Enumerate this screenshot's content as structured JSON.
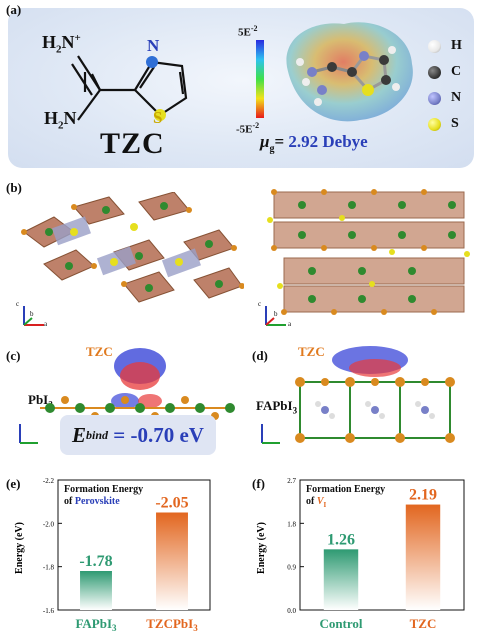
{
  "panel_a": {
    "label": "(a)",
    "molecule_name": "TZC",
    "atom_labels": {
      "h2n_top": "H",
      "h2n_top_n": "N",
      "h2n_sub": "2",
      "plus": "+",
      "h2n_bottom": "H",
      "h2n_bottom_sub": "2",
      "h2n_bottom_n": "N",
      "ring_n": "N",
      "ring_s": "S"
    },
    "scale_top_base": "5E",
    "scale_top_exp": "-2",
    "scale_bottom_base": "-5E",
    "scale_bottom_exp": "-2",
    "mu_symbol": "μ",
    "mu_sub": "g",
    "mu_eq": "= ",
    "mu_value": "2.92 Debye",
    "legend": [
      {
        "label": "H",
        "color": "#e8e8e8"
      },
      {
        "label": "C",
        "color": "#3a3a3a"
      },
      {
        "label": "N",
        "color": "#7880c8"
      },
      {
        "label": "S",
        "color": "#e6df1e"
      }
    ]
  },
  "panel_b": {
    "label": "(b)",
    "axes_left": {
      "c": "c",
      "b": "b",
      "a": "a"
    },
    "axes_right": {
      "c": "c",
      "b": "b",
      "a": "a"
    }
  },
  "panel_c": {
    "label": "(c)",
    "tzc": "TZC",
    "substrate": "PbI",
    "substrate_sub": "2",
    "ebind_symbol": "E",
    "ebind_sub": "bind",
    "ebind_value": "= -0.70 eV"
  },
  "panel_d": {
    "label": "(d)",
    "tzc": "TZC",
    "substrate": "FAPbI",
    "substrate_sub": "3"
  },
  "chart_data": [
    {
      "panel": "(e)",
      "type": "bar",
      "title_line1": "Formation Energy",
      "title_line2_prefix": "of ",
      "title_line2_highlight": "Perovskite",
      "ylabel": "Energy (eV)",
      "ylim": [
        -1.6,
        -2.2
      ],
      "yticks": [
        "-1.6",
        "-1.8",
        "-2.0",
        "-2.2"
      ],
      "categories": [
        "FAPbI3",
        "TZCPbI3"
      ],
      "category_parts": [
        {
          "base": "FAPbI",
          "sub": "3"
        },
        {
          "base": "TZCPbI",
          "sub": "3"
        }
      ],
      "values": [
        -1.78,
        -2.05
      ],
      "value_labels": [
        "-1.78",
        "-2.05"
      ],
      "colors": [
        "#2e9a72",
        "#e2661f"
      ]
    },
    {
      "panel": "(f)",
      "type": "bar",
      "title_line1": "Formation Energy",
      "title_line2_prefix": "of ",
      "title_line2_highlight": "V",
      "title_line2_sub": "I",
      "ylabel": "Energy (eV)",
      "ylim": [
        0.0,
        2.7
      ],
      "yticks": [
        "0.0",
        "0.9",
        "1.8",
        "2.7"
      ],
      "categories": [
        "Control",
        "TZC"
      ],
      "category_parts": [
        {
          "base": "Control",
          "sub": ""
        },
        {
          "base": "TZC",
          "sub": ""
        }
      ],
      "values": [
        1.26,
        2.19
      ],
      "value_labels": [
        "1.26",
        "2.19"
      ],
      "colors": [
        "#2e9a72",
        "#e2661f"
      ]
    }
  ]
}
